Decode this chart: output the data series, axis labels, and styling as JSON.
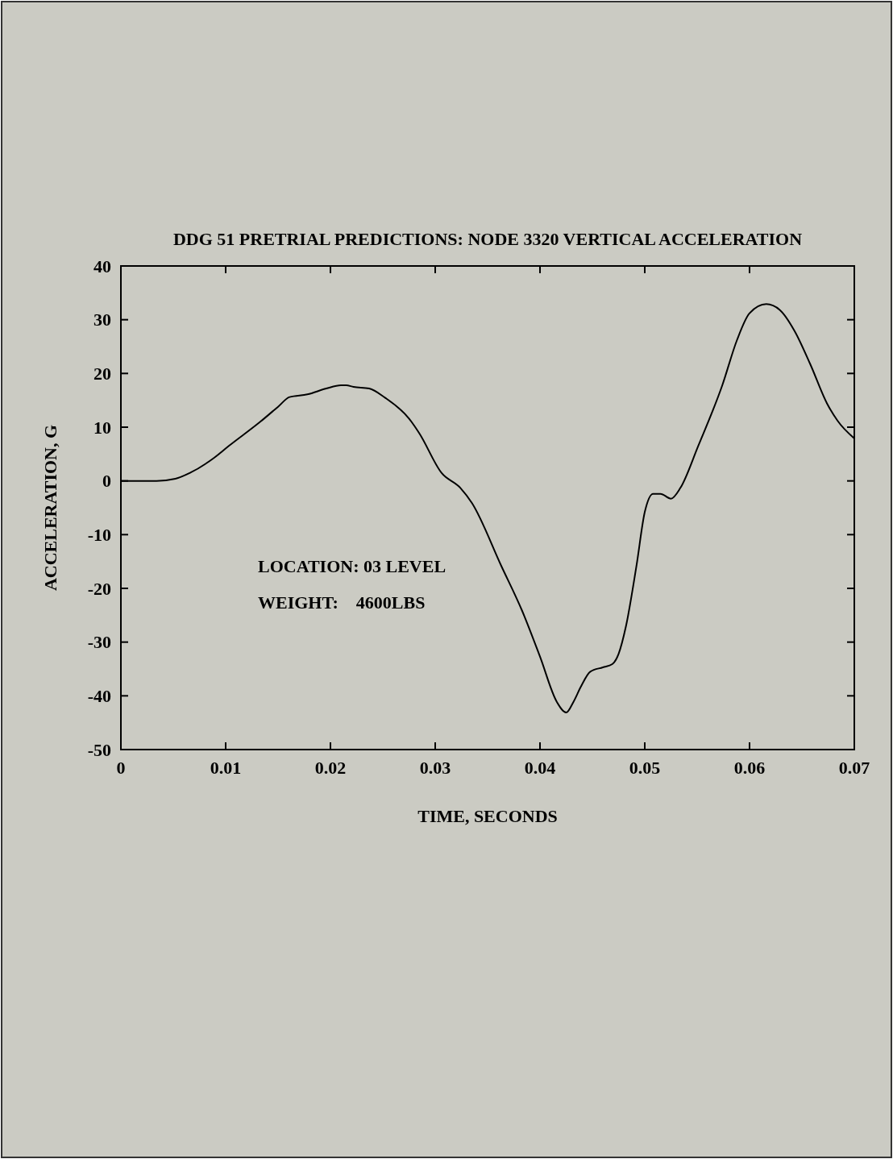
{
  "chart_data": {
    "type": "line",
    "title": "DDG 51 PRETRIAL PREDICTIONS: NODE 3320 VERTICAL ACCELERATION",
    "xlabel": "TIME, SECONDS",
    "ylabel": "ACCELERATION, G",
    "annotations": [
      "LOCATION: 03 LEVEL",
      "WEIGHT:    4600LBS"
    ],
    "xlim": [
      0,
      0.07
    ],
    "ylim": [
      -50,
      40
    ],
    "xticks": [
      0,
      0.01,
      0.02,
      0.03,
      0.04,
      0.05,
      0.06,
      0.07
    ],
    "yticks": [
      -50,
      -40,
      -30,
      -20,
      -10,
      0,
      10,
      20,
      30,
      40
    ],
    "grid": false,
    "marker": "none",
    "line_style": "solid",
    "series": [
      {
        "color": "#000000",
        "x": [
          0,
          0.0034,
          0.0052,
          0.0066,
          0.0089,
          0.0103,
          0.0133,
          0.015,
          0.0161,
          0.0178,
          0.0196,
          0.021,
          0.0215,
          0.0222,
          0.0237,
          0.0252,
          0.0275,
          0.0285,
          0.0306,
          0.0324,
          0.0335,
          0.0363,
          0.0383,
          0.04,
          0.0416,
          0.0425,
          0.0432,
          0.0439,
          0.0448,
          0.046,
          0.0469,
          0.0475,
          0.0482,
          0.0492,
          0.05,
          0.0508,
          0.0515,
          0.0525,
          0.0534,
          0.0551,
          0.0574,
          0.0588,
          0.06,
          0.0616,
          0.0629,
          0.0643,
          0.0658,
          0.0674,
          0.0684,
          0.07
        ],
        "values": [
          0,
          0,
          0.4,
          1.5,
          4.3,
          6.5,
          11,
          13.8,
          15.6,
          16.1,
          17.2,
          17.8,
          17.8,
          17.5,
          17.2,
          15.5,
          11.6,
          8.8,
          1.5,
          -1.3,
          -4.1,
          -15.8,
          -24.2,
          -32.7,
          -41.1,
          -43.1,
          -41.1,
          -38.3,
          -35.5,
          -34.7,
          -34.1,
          -32.2,
          -27.1,
          -15.9,
          -5.8,
          -2.4,
          -2.4,
          -3.3,
          -1.3,
          6.5,
          17.8,
          26.2,
          31.2,
          32.9,
          31.8,
          27.9,
          21.7,
          14.4,
          11.2,
          7.9
        ]
      }
    ]
  }
}
